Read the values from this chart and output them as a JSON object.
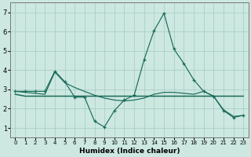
{
  "xlabel": "Humidex (Indice chaleur)",
  "bg_color": "#cce8e0",
  "grid_color": "#aacfc8",
  "line_color": "#1a6b5a",
  "xlim": [
    -0.5,
    23.5
  ],
  "ylim": [
    0.5,
    7.5
  ],
  "xticks": [
    0,
    1,
    2,
    3,
    4,
    5,
    6,
    7,
    8,
    9,
    10,
    11,
    12,
    13,
    14,
    15,
    16,
    17,
    18,
    19,
    20,
    21,
    22,
    23
  ],
  "yticks": [
    1,
    2,
    3,
    4,
    5,
    6,
    7
  ],
  "line1_x": [
    0,
    1,
    2,
    3,
    4,
    5,
    6,
    7,
    8,
    9,
    10,
    11,
    12,
    13,
    14,
    15,
    16,
    17,
    18,
    19,
    20,
    21,
    22,
    23
  ],
  "line1_y": [
    2.9,
    2.9,
    2.9,
    2.9,
    3.95,
    3.4,
    2.6,
    2.6,
    1.35,
    1.05,
    1.9,
    2.45,
    2.7,
    4.55,
    6.05,
    6.95,
    5.1,
    4.35,
    3.5,
    2.9,
    2.65,
    1.9,
    1.55,
    1.65
  ],
  "line2_x": [
    0,
    1,
    2,
    3,
    4,
    5,
    6,
    7,
    8,
    9,
    10,
    11,
    12,
    13,
    14,
    15,
    16,
    17,
    18,
    19,
    20,
    21,
    22,
    23
  ],
  "line2_y": [
    2.75,
    2.65,
    2.65,
    2.65,
    2.65,
    2.65,
    2.65,
    2.65,
    2.65,
    2.65,
    2.65,
    2.65,
    2.65,
    2.65,
    2.65,
    2.65,
    2.65,
    2.65,
    2.65,
    2.65,
    2.65,
    2.65,
    2.65,
    2.65
  ],
  "line3_x": [
    0,
    1,
    2,
    3,
    4,
    5,
    6,
    7,
    8,
    9,
    10,
    11,
    12,
    13,
    14,
    15,
    16,
    17,
    18,
    19,
    20,
    21,
    22,
    23
  ],
  "line3_y": [
    2.9,
    2.85,
    2.8,
    2.75,
    3.9,
    3.35,
    3.1,
    2.9,
    2.7,
    2.55,
    2.45,
    2.4,
    2.45,
    2.55,
    2.75,
    2.85,
    2.85,
    2.8,
    2.75,
    2.9,
    2.65,
    1.95,
    1.6,
    1.65
  ]
}
